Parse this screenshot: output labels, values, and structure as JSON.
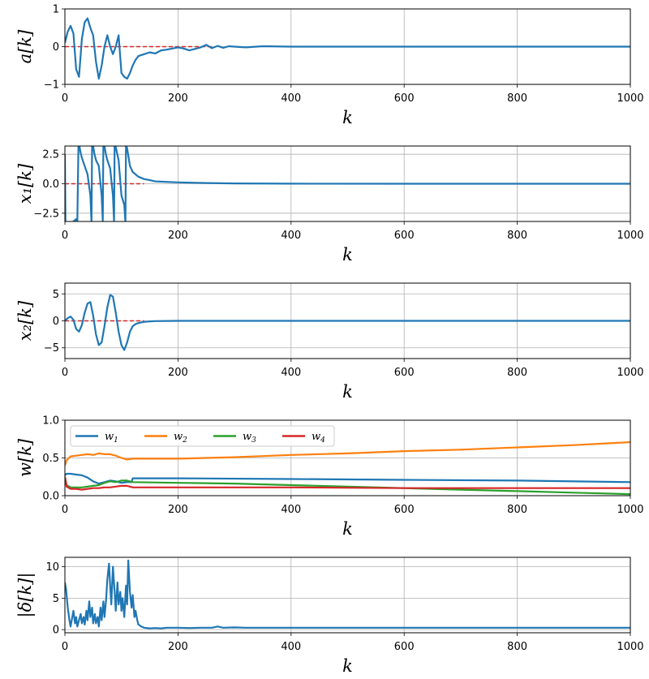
{
  "chart_data": [
    {
      "type": "line",
      "ylabel": "a[k]",
      "xlabel": "k",
      "xlim": [
        0,
        1000
      ],
      "ylim": [
        -1,
        1
      ],
      "xticks": [
        "0",
        "200",
        "400",
        "600",
        "800",
        "1000"
      ],
      "yticks": [
        {
          "v": -1,
          "label": "−1"
        },
        {
          "v": 0,
          "label": "0"
        },
        {
          "v": 1,
          "label": "1"
        }
      ],
      "grid": true,
      "reference": {
        "value": 0,
        "x_end": 260,
        "color": "#d62728",
        "style": "dashed"
      },
      "series": [
        {
          "name": "a",
          "color": "#1f77b4",
          "x": [
            0,
            5,
            10,
            15,
            20,
            25,
            30,
            35,
            40,
            45,
            50,
            55,
            60,
            65,
            70,
            75,
            80,
            85,
            90,
            95,
            100,
            105,
            110,
            115,
            120,
            125,
            130,
            140,
            150,
            160,
            170,
            180,
            190,
            200,
            210,
            220,
            230,
            240,
            250,
            260,
            270,
            280,
            290,
            300,
            320,
            350,
            400,
            500,
            600,
            700,
            800,
            900,
            1000
          ],
          "y": [
            0.1,
            0.4,
            0.55,
            0.35,
            -0.6,
            -0.8,
            0.2,
            0.65,
            0.75,
            0.5,
            0.3,
            -0.4,
            -0.85,
            -0.5,
            0.0,
            0.3,
            0.0,
            -0.2,
            0.0,
            0.3,
            -0.7,
            -0.8,
            -0.85,
            -0.7,
            -0.5,
            -0.35,
            -0.25,
            -0.2,
            -0.15,
            -0.18,
            -0.1,
            -0.08,
            -0.05,
            -0.02,
            -0.05,
            -0.1,
            -0.06,
            -0.02,
            0.05,
            -0.04,
            0.02,
            -0.03,
            0.01,
            0.0,
            -0.02,
            0.01,
            0.0,
            0.0,
            0.0,
            0.0,
            0.0,
            0.0,
            0.0
          ]
        }
      ]
    },
    {
      "type": "line",
      "ylabel": "x₁[k]",
      "xlabel": "k",
      "xlim": [
        0,
        1000
      ],
      "ylim": [
        -3.2,
        3.2
      ],
      "xticks": [
        "0",
        "200",
        "400",
        "600",
        "800",
        "1000"
      ],
      "yticks": [
        {
          "v": -2.5,
          "label": "−2.5"
        },
        {
          "v": 0,
          "label": "0.0"
        },
        {
          "v": 2.5,
          "label": "2.5"
        }
      ],
      "grid": true,
      "reference": {
        "value": 0,
        "x_end": 140,
        "color": "#d62728",
        "style": "dashed"
      },
      "series": [
        {
          "name": "x1",
          "color": "#1f77b4",
          "x": [
            0,
            1,
            2,
            5,
            10,
            15,
            20,
            22,
            24,
            25,
            26,
            28,
            30,
            35,
            40,
            45,
            47,
            48,
            50,
            52,
            55,
            60,
            65,
            67,
            68,
            70,
            72,
            75,
            80,
            85,
            87,
            88,
            90,
            95,
            100,
            105,
            107,
            108,
            110,
            115,
            120,
            130,
            140,
            150,
            160,
            200,
            250,
            300,
            400,
            600,
            800,
            1000
          ],
          "y": [
            2.5,
            -3.2,
            -3.3,
            -3.3,
            -3.4,
            -3.2,
            -3.0,
            -3.3,
            3.3,
            3.3,
            3.1,
            2.6,
            2.2,
            1.5,
            0.8,
            -1.0,
            -3.3,
            3.3,
            3.2,
            2.6,
            2.0,
            1.5,
            -1.0,
            -3.2,
            3.3,
            3.2,
            2.6,
            2.0,
            1.3,
            -1.0,
            -3.2,
            3.3,
            3.1,
            2.0,
            -1.0,
            -1.8,
            -3.3,
            3.3,
            3.0,
            1.5,
            1.0,
            0.6,
            0.4,
            0.3,
            0.2,
            0.12,
            0.06,
            0.03,
            0.01,
            0.0,
            0.0,
            0.0
          ]
        }
      ]
    },
    {
      "type": "line",
      "ylabel": "x₂[k]",
      "xlabel": "k",
      "xlim": [
        0,
        1000
      ],
      "ylim": [
        -7,
        7
      ],
      "xticks": [
        "0",
        "200",
        "400",
        "600",
        "800",
        "1000"
      ],
      "yticks": [
        {
          "v": -5,
          "label": "−5"
        },
        {
          "v": 0,
          "label": "0"
        },
        {
          "v": 5,
          "label": "5"
        }
      ],
      "grid": true,
      "reference": {
        "value": 0,
        "x_end": 140,
        "color": "#d62728",
        "style": "dashed"
      },
      "series": [
        {
          "name": "x2",
          "color": "#1f77b4",
          "x": [
            0,
            5,
            10,
            15,
            20,
            25,
            30,
            35,
            40,
            45,
            50,
            55,
            60,
            65,
            70,
            75,
            80,
            85,
            90,
            95,
            100,
            105,
            110,
            115,
            120,
            125,
            130,
            140,
            150,
            160,
            200,
            300,
            400,
            600,
            800,
            1000
          ],
          "y": [
            0.0,
            0.5,
            0.8,
            0.2,
            -1.5,
            -2.0,
            -0.8,
            1.5,
            3.2,
            3.5,
            1.0,
            -2.5,
            -4.5,
            -4.0,
            -1.0,
            2.5,
            4.8,
            4.5,
            1.5,
            -2.0,
            -4.5,
            -5.4,
            -4.0,
            -2.0,
            -1.0,
            -0.6,
            -0.4,
            -0.2,
            -0.1,
            -0.05,
            0.0,
            0.0,
            0.0,
            0.0,
            0.0,
            0.0
          ]
        }
      ]
    },
    {
      "type": "line",
      "ylabel": "w[k]",
      "xlabel": "k",
      "xlim": [
        0,
        1000
      ],
      "ylim": [
        0.0,
        1.0
      ],
      "xticks": [
        "0",
        "200",
        "400",
        "600",
        "800",
        "1000"
      ],
      "yticks": [
        {
          "v": 0.0,
          "label": "0.0"
        },
        {
          "v": 0.5,
          "label": "0.5"
        },
        {
          "v": 1.0,
          "label": "1.0"
        }
      ],
      "grid": true,
      "legend": {
        "placement": "top-left",
        "columns": 4
      },
      "series": [
        {
          "name": "w",
          "sub": "1",
          "color": "#1f77b4",
          "x": [
            0,
            3,
            10,
            20,
            30,
            40,
            50,
            60,
            70,
            80,
            90,
            100,
            110,
            118,
            120,
            122,
            200,
            400,
            600,
            800,
            1000
          ],
          "y": [
            0.27,
            0.29,
            0.29,
            0.28,
            0.27,
            0.24,
            0.19,
            0.16,
            0.18,
            0.2,
            0.19,
            0.17,
            0.18,
            0.18,
            0.23,
            0.23,
            0.23,
            0.22,
            0.21,
            0.2,
            0.18
          ]
        },
        {
          "name": "w",
          "sub": "2",
          "color": "#ff7f0e",
          "x": [
            0,
            3,
            10,
            20,
            30,
            40,
            50,
            60,
            70,
            80,
            90,
            100,
            110,
            120,
            130,
            150,
            200,
            300,
            400,
            500,
            600,
            700,
            800,
            900,
            1000
          ],
          "y": [
            0.4,
            0.47,
            0.52,
            0.53,
            0.54,
            0.55,
            0.54,
            0.56,
            0.55,
            0.55,
            0.53,
            0.5,
            0.48,
            0.49,
            0.49,
            0.49,
            0.49,
            0.51,
            0.54,
            0.56,
            0.59,
            0.61,
            0.64,
            0.67,
            0.71
          ]
        },
        {
          "name": "w",
          "sub": "3",
          "color": "#2ca02c",
          "x": [
            0,
            3,
            10,
            20,
            30,
            40,
            50,
            60,
            70,
            80,
            90,
            100,
            110,
            120,
            200,
            300,
            400,
            500,
            600,
            700,
            800,
            900,
            1000
          ],
          "y": [
            0.25,
            0.14,
            0.11,
            0.11,
            0.11,
            0.12,
            0.13,
            0.14,
            0.17,
            0.19,
            0.18,
            0.2,
            0.2,
            0.18,
            0.17,
            0.16,
            0.14,
            0.12,
            0.1,
            0.08,
            0.06,
            0.04,
            0.02
          ]
        },
        {
          "name": "w",
          "sub": "4",
          "color": "#d62728",
          "x": [
            0,
            3,
            10,
            20,
            30,
            40,
            50,
            60,
            70,
            80,
            90,
            100,
            110,
            120,
            200,
            400,
            600,
            800,
            1000
          ],
          "y": [
            0.25,
            0.12,
            0.09,
            0.09,
            0.08,
            0.09,
            0.1,
            0.1,
            0.11,
            0.11,
            0.12,
            0.13,
            0.13,
            0.11,
            0.11,
            0.11,
            0.1,
            0.1,
            0.1
          ]
        }
      ]
    },
    {
      "type": "line",
      "ylabel": "|δ[k]|",
      "xlabel": "k",
      "xlim": [
        0,
        1000
      ],
      "ylim": [
        -0.5,
        11.5
      ],
      "xticks": [
        "0",
        "200",
        "400",
        "600",
        "800",
        "1000"
      ],
      "yticks": [
        {
          "v": 0,
          "label": "0"
        },
        {
          "v": 5,
          "label": "5"
        },
        {
          "v": 10,
          "label": "10"
        }
      ],
      "grid": true,
      "series": [
        {
          "name": "delta",
          "color": "#1f77b4",
          "x": [
            0,
            2,
            5,
            8,
            10,
            12,
            15,
            18,
            20,
            22,
            25,
            28,
            30,
            33,
            35,
            38,
            40,
            43,
            45,
            48,
            50,
            53,
            55,
            58,
            60,
            63,
            65,
            68,
            70,
            73,
            75,
            78,
            80,
            82,
            85,
            88,
            90,
            93,
            95,
            98,
            100,
            102,
            105,
            108,
            110,
            112,
            115,
            118,
            120,
            123,
            125,
            128,
            130,
            135,
            140,
            150,
            160,
            170,
            180,
            200,
            220,
            240,
            260,
            270,
            280,
            300,
            320,
            350,
            400,
            500,
            600,
            700,
            800,
            900,
            1000
          ],
          "y": [
            7.5,
            6.5,
            3.5,
            1.5,
            0.5,
            1.5,
            3.0,
            1.0,
            2.0,
            0.5,
            1.5,
            2.5,
            1.0,
            2.0,
            0.8,
            3.0,
            1.5,
            4.5,
            2.0,
            3.5,
            1.0,
            2.5,
            1.0,
            2.0,
            0.5,
            3.5,
            1.5,
            4.5,
            2.0,
            5.0,
            8.0,
            10.5,
            7.0,
            4.0,
            10.0,
            6.0,
            3.0,
            7.5,
            4.0,
            6.0,
            3.0,
            5.0,
            2.0,
            7.0,
            4.0,
            11.0,
            6.0,
            3.5,
            5.5,
            2.0,
            3.0,
            1.5,
            0.8,
            0.5,
            0.3,
            0.2,
            0.25,
            0.2,
            0.3,
            0.3,
            0.25,
            0.3,
            0.3,
            0.5,
            0.3,
            0.35,
            0.3,
            0.3,
            0.3,
            0.3,
            0.3,
            0.3,
            0.3,
            0.3,
            0.3
          ]
        }
      ]
    }
  ]
}
